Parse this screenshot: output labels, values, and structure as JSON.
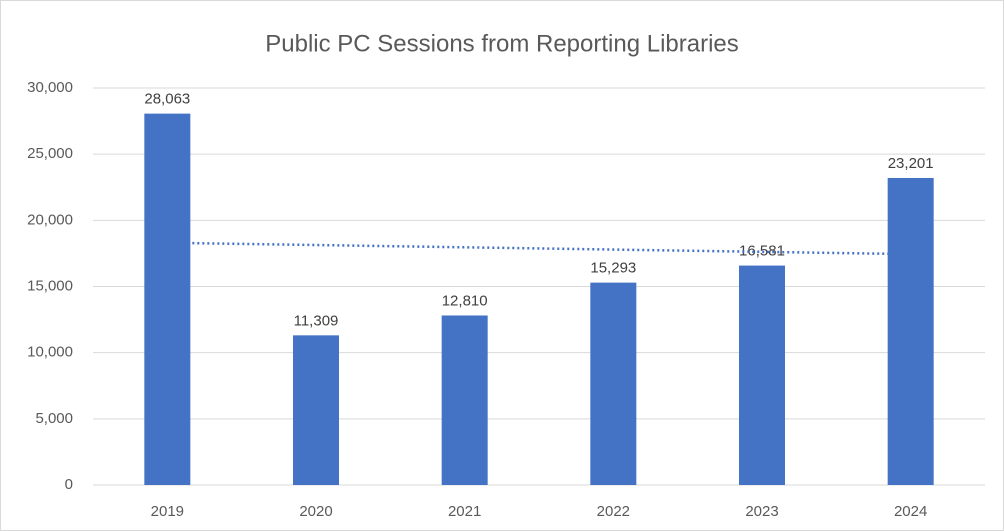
{
  "chart_data": {
    "type": "bar",
    "title": "Public PC Sessions from Reporting Libraries",
    "categories": [
      "2019",
      "2020",
      "2021",
      "2022",
      "2023",
      "2024"
    ],
    "values": [
      28063,
      11309,
      12810,
      15293,
      16581,
      23201
    ],
    "value_labels": [
      "28,063",
      "11,309",
      "12,810",
      "15,293",
      "16,581",
      "23,201"
    ],
    "color": "#4472c4",
    "ylim": [
      0,
      30000
    ],
    "yticks": [
      0,
      {
        "value": 5000,
        "label": "5,000"
      },
      {
        "value": 10000,
        "label": "10,000"
      },
      {
        "value": 15000,
        "label": "15,000"
      },
      {
        "value": 20000,
        "label": "20,000"
      },
      {
        "value": 25000,
        "label": "25,000"
      },
      {
        "value": 30000,
        "label": "30,000"
      }
    ],
    "grid": true,
    "trendline": "linear"
  }
}
